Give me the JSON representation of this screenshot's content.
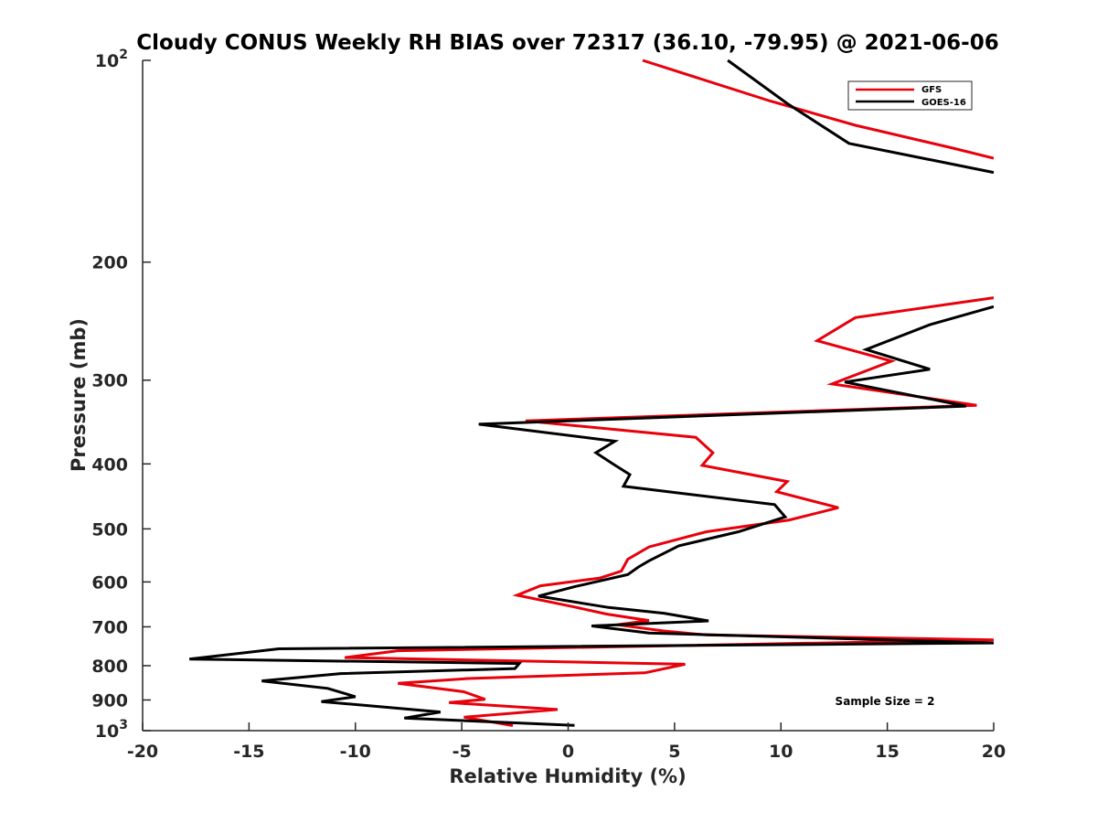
{
  "chart_data": {
    "type": "line",
    "title": "Cloudy CONUS Weekly RH BIAS over 72317 (36.10, -79.95) @ 2021-06-06",
    "xlabel": "Relative Humidity (%)",
    "ylabel": "Pressure (mb)",
    "xlim": [
      -20,
      20
    ],
    "ylim": [
      100,
      1000
    ],
    "y_scale": "log",
    "y_reversed": true,
    "x_ticks": [
      "-20",
      "-15",
      "-10",
      "-5",
      "0",
      "5",
      "10",
      "15",
      "20"
    ],
    "y_ticks": [
      {
        "value": 100,
        "base": "10",
        "exp": "2"
      },
      {
        "value": 200,
        "label": "200"
      },
      {
        "value": 300,
        "label": "300"
      },
      {
        "value": 400,
        "label": "400"
      },
      {
        "value": 500,
        "label": "500"
      },
      {
        "value": 600,
        "label": "600"
      },
      {
        "value": 700,
        "label": "700"
      },
      {
        "value": 800,
        "label": "800"
      },
      {
        "value": 900,
        "label": "900"
      },
      {
        "value": 1000,
        "base": "10",
        "exp": "3"
      }
    ],
    "grid": false,
    "legend_position": "top-right",
    "annotation": "Sample Size = 2",
    "series": [
      {
        "name": "GFS",
        "color": "#e8000b",
        "points": [
          [
            3.5,
            100
          ],
          [
            9.5,
            115
          ],
          [
            13.5,
            125
          ],
          [
            18,
            135
          ],
          [
            20,
            140
          ],
          [
            null,
            null
          ],
          [
            20,
            226
          ],
          [
            13.5,
            242
          ],
          [
            11.7,
            262
          ],
          [
            15.2,
            281
          ],
          [
            12.4,
            304
          ],
          [
            19.2,
            327
          ],
          [
            -2,
            345
          ],
          [
            6,
            365
          ],
          [
            6.8,
            385
          ],
          [
            6.3,
            402
          ],
          [
            10.3,
            425
          ],
          [
            9.8,
            440
          ],
          [
            12.7,
            465
          ],
          [
            10.4,
            485
          ],
          [
            6.5,
            505
          ],
          [
            3.8,
            532
          ],
          [
            2.8,
            555
          ],
          [
            2.5,
            578
          ],
          [
            1.5,
            592
          ],
          [
            -1.3,
            608
          ],
          [
            -2.4,
            628
          ],
          [
            0.2,
            653
          ],
          [
            1.8,
            670
          ],
          [
            3.8,
            685
          ],
          [
            2.3,
            695
          ],
          [
            4.5,
            710
          ],
          [
            6.5,
            720
          ],
          [
            20,
            732
          ],
          [
            -8,
            760
          ],
          [
            -10.5,
            778
          ],
          [
            5.5,
            796
          ],
          [
            3.6,
            820
          ],
          [
            -4.7,
            836
          ],
          [
            -8,
            850
          ],
          [
            -4.9,
            875
          ],
          [
            -3.9,
            898
          ],
          [
            -5.6,
            908
          ],
          [
            -0.5,
            930
          ],
          [
            -4.9,
            955
          ],
          [
            -2.6,
            983
          ]
        ]
      },
      {
        "name": "GOES-16",
        "color": "#000000",
        "points": [
          [
            7.5,
            100
          ],
          [
            10.3,
            116
          ],
          [
            13.2,
            133
          ],
          [
            20,
            147
          ],
          [
            null,
            null
          ],
          [
            20,
            233
          ],
          [
            17,
            248
          ],
          [
            14,
            270
          ],
          [
            17,
            289
          ],
          [
            13,
            302
          ],
          [
            18.7,
            328
          ],
          [
            -4.2,
            349
          ],
          [
            2.2,
            370
          ],
          [
            1.3,
            385
          ],
          [
            2.1,
            400
          ],
          [
            2.9,
            415
          ],
          [
            2.6,
            432
          ],
          [
            9.7,
            460
          ],
          [
            10.2,
            480
          ],
          [
            8,
            505
          ],
          [
            5.2,
            530
          ],
          [
            3.8,
            558
          ],
          [
            3.3,
            570
          ],
          [
            2.8,
            585
          ],
          [
            0.3,
            610
          ],
          [
            -1.4,
            630
          ],
          [
            1.9,
            655
          ],
          [
            4.5,
            668
          ],
          [
            6.6,
            686
          ],
          [
            1.1,
            698
          ],
          [
            3.8,
            715
          ],
          [
            20,
            740
          ],
          [
            -13.6,
            755
          ],
          [
            -17.8,
            782
          ],
          [
            -2.3,
            794
          ],
          [
            -2.5,
            808
          ],
          [
            -10.7,
            822
          ],
          [
            -14.4,
            843
          ],
          [
            -11.3,
            865
          ],
          [
            -10,
            890
          ],
          [
            -11.6,
            905
          ],
          [
            -6,
            938
          ],
          [
            -7.7,
            958
          ],
          [
            0.3,
            982
          ]
        ]
      }
    ]
  }
}
